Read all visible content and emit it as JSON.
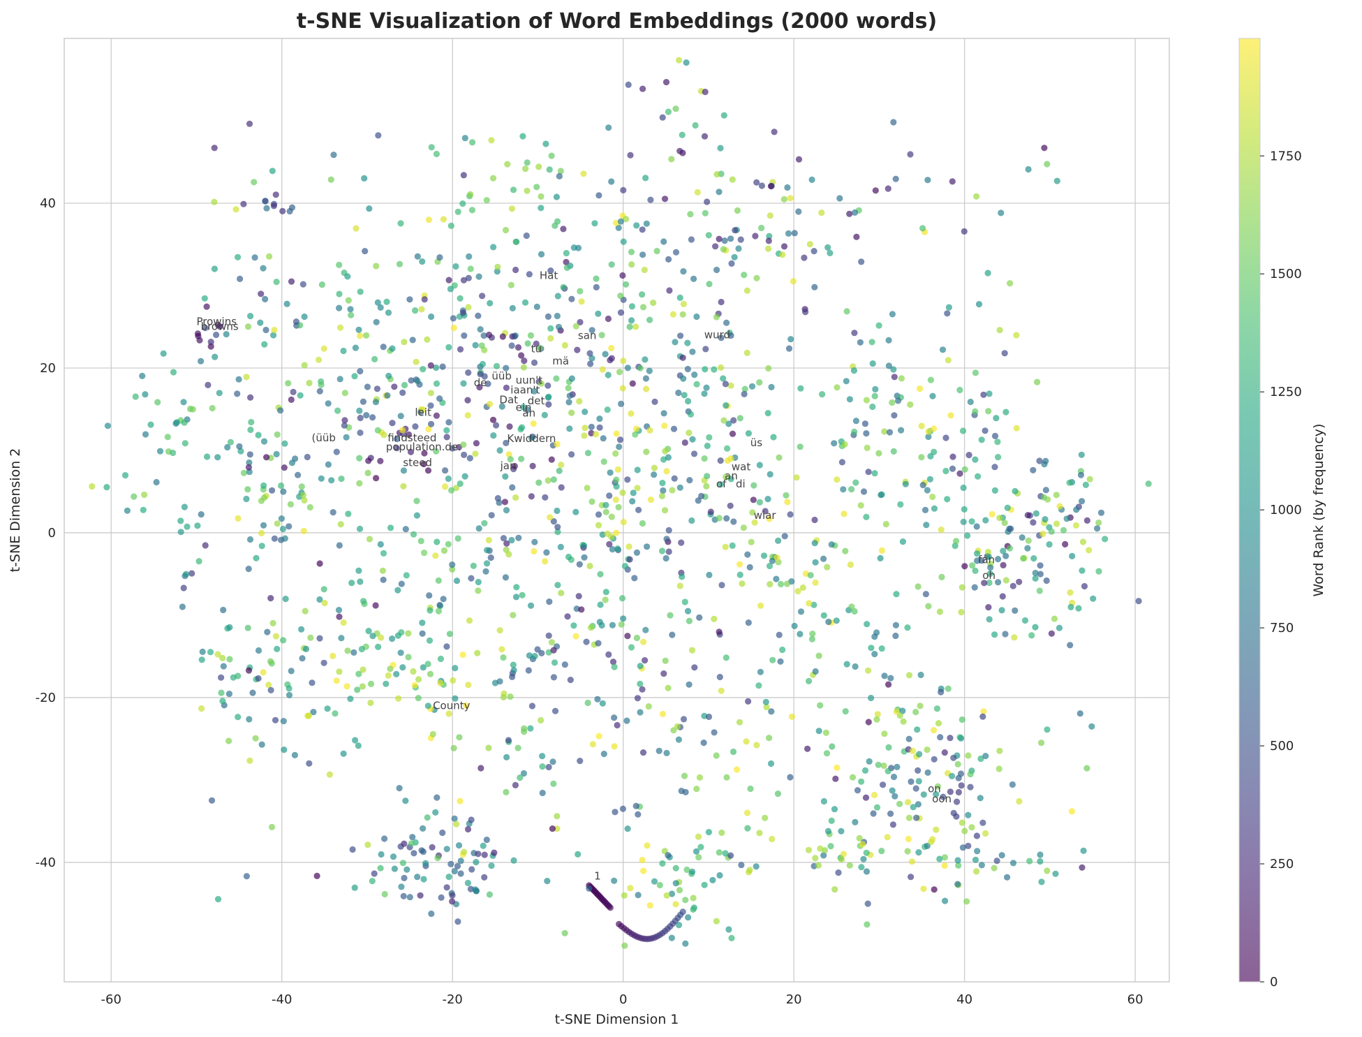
{
  "chart_data": {
    "type": "scatter",
    "title": "t-SNE Visualization of Word Embeddings (2000 words)",
    "xlabel": "t-SNE Dimension 1",
    "ylabel": "t-SNE Dimension 2",
    "xlim": [
      -65.5,
      64
    ],
    "ylim": [
      -54.5,
      60
    ],
    "x_ticks": [
      -60,
      -40,
      -20,
      0,
      20,
      40,
      60
    ],
    "y_ticks": [
      -40,
      -20,
      0,
      20,
      40
    ],
    "grid": true,
    "colorbar": {
      "label": "Word Rank (by frequency)",
      "colormap": "viridis",
      "range": [
        0,
        1999
      ],
      "ticks": [
        0,
        250,
        500,
        750,
        1000,
        1250,
        1500,
        1750
      ]
    },
    "n_points": 2000,
    "annotations": [
      {
        "text": "Prowins",
        "x": -50,
        "y": 25.2
      },
      {
        "text": "browns",
        "x": -49.5,
        "y": 24.6
      },
      {
        "text": "Hat",
        "x": -9.8,
        "y": 30.8
      },
      {
        "text": "san",
        "x": -5.3,
        "y": 23.5
      },
      {
        "text": "wurd",
        "x": 9.5,
        "y": 23.6
      },
      {
        "text": "tu",
        "x": -10.8,
        "y": 21.9
      },
      {
        "text": "mä",
        "x": -8.3,
        "y": 20.4
      },
      {
        "text": "üüb",
        "x": -15.4,
        "y": 18.6
      },
      {
        "text": "de",
        "x": -17.5,
        "y": 17.8
      },
      {
        "text": "uun't",
        "x": -12.6,
        "y": 18.1
      },
      {
        "text": "iaan't",
        "x": -13.2,
        "y": 16.9
      },
      {
        "text": "Dat",
        "x": -14.5,
        "y": 15.7
      },
      {
        "text": "det",
        "x": -11.2,
        "y": 15.6
      },
      {
        "text": "ein",
        "x": -12.6,
        "y": 14.8
      },
      {
        "text": "an",
        "x": -11.8,
        "y": 14.1
      },
      {
        "text": "leit",
        "x": -24.4,
        "y": 14.2
      },
      {
        "text": "(üüb",
        "x": -36.5,
        "y": 11.1
      },
      {
        "text": "findsteed",
        "x": -27.6,
        "y": 11.1
      },
      {
        "text": "population.de.",
        "x": -27.8,
        "y": 10.0
      },
      {
        "text": "Kwiddern",
        "x": -13.6,
        "y": 11.0
      },
      {
        "text": "steed",
        "x": -25.8,
        "y": 8.1
      },
      {
        "text": "jan",
        "x": -14.4,
        "y": 7.7
      },
      {
        "text": "üs",
        "x": 14.9,
        "y": 10.5
      },
      {
        "text": "wat",
        "x": 12.7,
        "y": 7.6
      },
      {
        "text": "an",
        "x": 11.9,
        "y": 6.5
      },
      {
        "text": "of",
        "x": 10.9,
        "y": 5.5
      },
      {
        "text": "di",
        "x": 13.2,
        "y": 5.5
      },
      {
        "text": "wiar",
        "x": 15.3,
        "y": 1.7
      },
      {
        "text": "fan",
        "x": 41.6,
        "y": -3.7
      },
      {
        "text": "oh",
        "x": 42.1,
        "y": -5.6
      },
      {
        "text": "County",
        "x": -22.3,
        "y": -21.4
      },
      {
        "text": "on",
        "x": 35.7,
        "y": -31.5
      },
      {
        "text": "oon",
        "x": 36.2,
        "y": -32.7
      },
      {
        "text": "1",
        "x": -3.4,
        "y": -42.1
      }
    ],
    "clusters": [
      {
        "cx": -40,
        "cy": 40,
        "r": 1.0,
        "n": 9,
        "lo": 150,
        "hi": 900
      },
      {
        "cx": -49,
        "cy": 24.6,
        "r": 1.2,
        "n": 10,
        "lo": 50,
        "hi": 500
      },
      {
        "cx": -54,
        "cy": 14,
        "r": 3.0,
        "n": 22,
        "lo": 800,
        "hi": 1600
      },
      {
        "cx": -57,
        "cy": 5,
        "r": 1.5,
        "n": 8,
        "lo": 700,
        "hi": 1900
      },
      {
        "cx": -51,
        "cy": 1,
        "r": 1.2,
        "n": 5,
        "lo": 900,
        "hi": 1400
      },
      {
        "cx": -51,
        "cy": -6,
        "r": 1.0,
        "n": 6,
        "lo": 200,
        "hi": 1500
      },
      {
        "cx": -40,
        "cy": 4,
        "r": 3.0,
        "n": 28,
        "lo": 500,
        "hi": 1900
      },
      {
        "cx": -44,
        "cy": 12,
        "r": 3.0,
        "n": 18,
        "lo": 800,
        "hi": 1999
      },
      {
        "cx": -38,
        "cy": 26,
        "r": 6.0,
        "n": 35,
        "lo": 300,
        "hi": 1999
      },
      {
        "cx": -40,
        "cy": -17,
        "r": 5.0,
        "n": 45,
        "lo": 400,
        "hi": 1999
      },
      {
        "cx": -28,
        "cy": 18,
        "r": 5.0,
        "n": 45,
        "lo": 500,
        "hi": 1999
      },
      {
        "cx": -26,
        "cy": 12,
        "r": 4.0,
        "n": 30,
        "lo": 0,
        "hi": 600
      },
      {
        "cx": -22,
        "cy": 25,
        "r": 7.0,
        "n": 50,
        "lo": 400,
        "hi": 1999
      },
      {
        "cx": -25,
        "cy": -18,
        "r": 5.0,
        "n": 50,
        "lo": 900,
        "hi": 1999
      },
      {
        "cx": -18,
        "cy": 40.5,
        "r": 1.2,
        "n": 6,
        "lo": 1200,
        "hi": 1900
      },
      {
        "cx": -10,
        "cy": 45,
        "r": 3.0,
        "n": 16,
        "lo": 1000,
        "hi": 1800
      },
      {
        "cx": -14,
        "cy": 16,
        "r": 5.0,
        "n": 45,
        "lo": 0,
        "hi": 700
      },
      {
        "cx": -10,
        "cy": 30,
        "r": 6.0,
        "n": 30,
        "lo": 100,
        "hi": 1500
      },
      {
        "cx": -15,
        "cy": 3,
        "r": 7.0,
        "n": 55,
        "lo": 500,
        "hi": 1999
      },
      {
        "cx": -10,
        "cy": -12,
        "r": 7.0,
        "n": 60,
        "lo": 400,
        "hi": 1999
      },
      {
        "cx": -20,
        "cy": -40,
        "r": 3.5,
        "n": 55,
        "lo": 200,
        "hi": 1200
      },
      {
        "cx": -26,
        "cy": -40,
        "r": 2.5,
        "n": 20,
        "lo": 300,
        "hi": 1800
      },
      {
        "cx": -12,
        "cy": -28,
        "r": 2.5,
        "n": 18,
        "lo": 100,
        "hi": 1700
      },
      {
        "cx": 0,
        "cy": 12,
        "r": 6.0,
        "n": 65,
        "lo": 200,
        "hi": 1999
      },
      {
        "cx": -3,
        "cy": 0,
        "r": 6.0,
        "n": 50,
        "lo": 200,
        "hi": 1999
      },
      {
        "cx": 6,
        "cy": 52,
        "r": 2.0,
        "n": 12,
        "lo": 100,
        "hi": 1900
      },
      {
        "cx": 6,
        "cy": 36,
        "r": 5.0,
        "n": 40,
        "lo": 100,
        "hi": 1999
      },
      {
        "cx": 19,
        "cy": 38,
        "r": 4.0,
        "n": 30,
        "lo": 0,
        "hi": 1900
      },
      {
        "cx": 10,
        "cy": 20,
        "r": 6.0,
        "n": 45,
        "lo": 300,
        "hi": 1999
      },
      {
        "cx": 12,
        "cy": 6,
        "r": 5.0,
        "n": 40,
        "lo": 0,
        "hi": 1999
      },
      {
        "cx": 4,
        "cy": -8,
        "r": 6.0,
        "n": 45,
        "lo": 200,
        "hi": 1999
      },
      {
        "cx": 5,
        "cy": -26,
        "r": 5.0,
        "n": 30,
        "lo": 300,
        "hi": 1999
      },
      {
        "cx": 7,
        "cy": -42,
        "r": 4.0,
        "n": 45,
        "lo": 800,
        "hi": 1999
      },
      {
        "cx": 14,
        "cy": -35,
        "r": 2.0,
        "n": 8,
        "lo": 1300,
        "hi": 1999
      },
      {
        "cx": 20,
        "cy": -5,
        "r": 4.0,
        "n": 40,
        "lo": 700,
        "hi": 1999
      },
      {
        "cx": 16,
        "cy": -22,
        "r": 4.0,
        "n": 15,
        "lo": 300,
        "hi": 1999
      },
      {
        "cx": 30,
        "cy": 7,
        "r": 4.0,
        "n": 35,
        "lo": 200,
        "hi": 1999
      },
      {
        "cx": 32,
        "cy": 18,
        "r": 4.0,
        "n": 25,
        "lo": 700,
        "hi": 1999
      },
      {
        "cx": 29,
        "cy": -12,
        "r": 2.5,
        "n": 18,
        "lo": 700,
        "hi": 1300
      },
      {
        "cx": 30,
        "cy": -25,
        "r": 4.0,
        "n": 20,
        "lo": 900,
        "hi": 1999
      },
      {
        "cx": 37,
        "cy": -30,
        "r": 5.0,
        "n": 60,
        "lo": 100,
        "hi": 1999
      },
      {
        "cx": 29,
        "cy": -38,
        "r": 4.0,
        "n": 40,
        "lo": 500,
        "hi": 1999
      },
      {
        "cx": 40,
        "cy": -38,
        "r": 3.0,
        "n": 30,
        "lo": 300,
        "hi": 1999
      },
      {
        "cx": 46,
        "cy": -3,
        "r": 6.0,
        "n": 110,
        "lo": 0,
        "hi": 1999
      },
      {
        "cx": 39,
        "cy": 12,
        "r": 4.0,
        "n": 25,
        "lo": 300,
        "hi": 1999
      },
      {
        "cx": 52,
        "cy": 4,
        "r": 3.0,
        "n": 20,
        "lo": 400,
        "hi": 1999
      },
      {
        "cx": -30,
        "cy": -5,
        "r": 6.0,
        "n": 40,
        "lo": 500,
        "hi": 1999
      },
      {
        "cx": -5,
        "cy": 25,
        "r": 5.0,
        "n": 35,
        "lo": 100,
        "hi": 1999
      }
    ],
    "arcs": [
      {
        "from": [
          -4,
          -42.8
        ],
        "to": [
          -1.5,
          -45.5
        ],
        "n": 18,
        "lo": 0,
        "hi": 80
      },
      {
        "from": [
          -0.5,
          -47.5
        ],
        "to": [
          7,
          -46
        ],
        "n": 26,
        "lo": 60,
        "hi": 500,
        "bend": -2.5
      }
    ]
  }
}
